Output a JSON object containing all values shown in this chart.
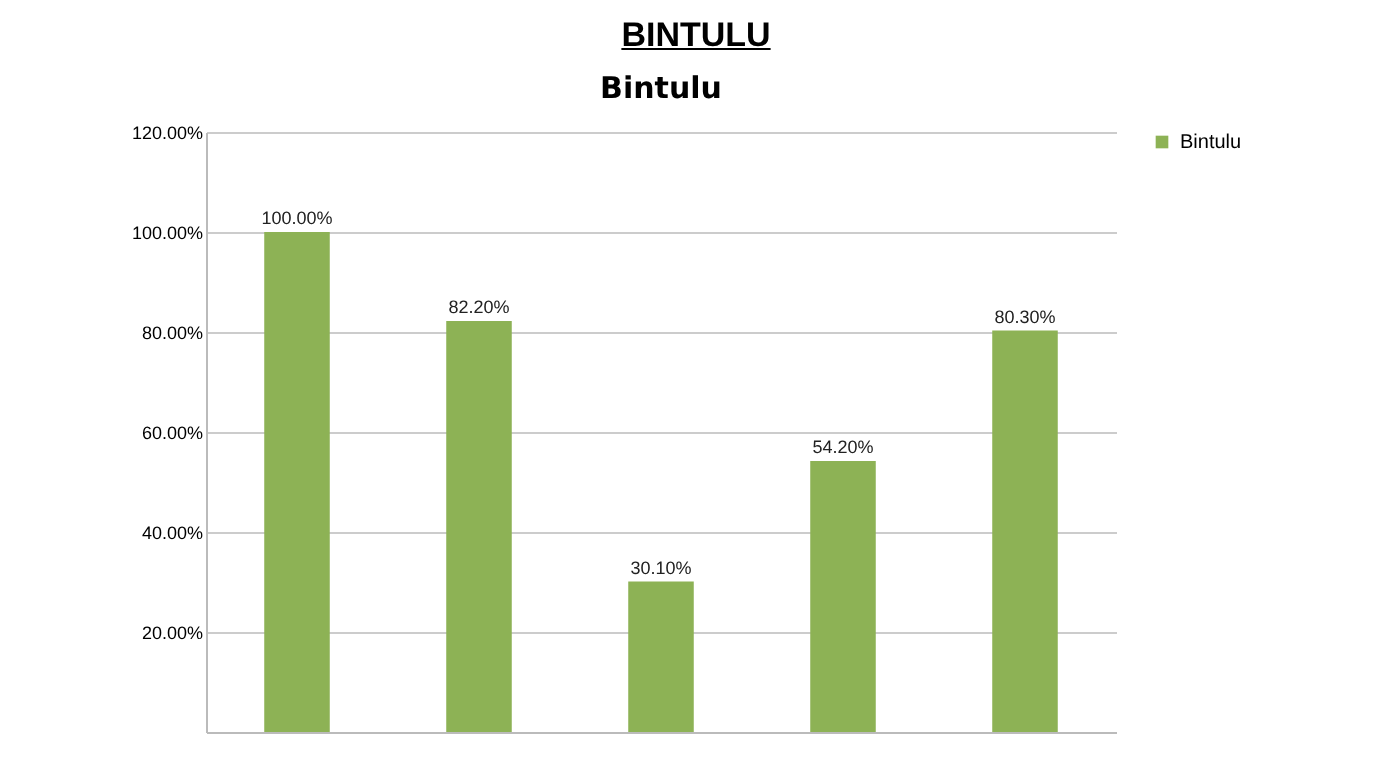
{
  "chart_data": {
    "type": "bar",
    "title": "BINTULU",
    "subtitle": "Bintulu",
    "categories": [
      null,
      null,
      null,
      null,
      null
    ],
    "series": [
      {
        "name": "Bintulu",
        "color": "#8db255",
        "values": [
          100,
          82.2,
          30.1,
          54.2,
          80.3
        ],
        "value_labels": [
          "100.00%",
          "82.20%",
          "30.10%",
          "54.20%",
          "80.30%"
        ]
      }
    ],
    "ylim": [
      0,
      120
    ],
    "yticks": [
      {
        "value": 20,
        "label": "20.00%"
      },
      {
        "value": 40,
        "label": "40.00%"
      },
      {
        "value": 60,
        "label": "60.00%"
      },
      {
        "value": 80,
        "label": "80.00%"
      },
      {
        "value": 100,
        "label": "100.00%"
      },
      {
        "value": 120,
        "label": "120.00%"
      }
    ],
    "grid": "y",
    "legend": "right",
    "tick_labels": "y"
  }
}
